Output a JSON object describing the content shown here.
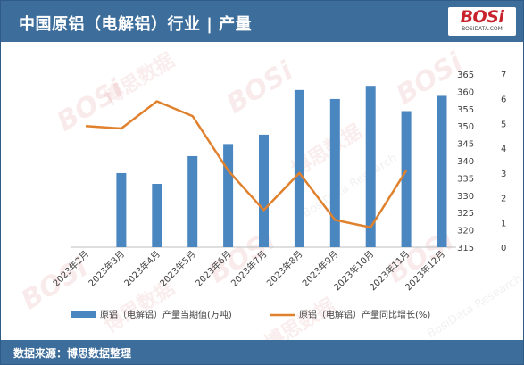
{
  "header": {
    "title": "中国原铝（电解铝）行业 | 产量",
    "logo_text": "BOSi",
    "logo_sub": "BOSIDATA.COM"
  },
  "footer": {
    "source": "数据来源：博思数据整理"
  },
  "watermark": {
    "logo": "BOSi",
    "cn": "博思数据",
    "en": "BosiData Research"
  },
  "colors": {
    "header_bg": "#3d6e9b",
    "bar": "#4a86c0",
    "line": "#e0812e",
    "axis_text": "#404040"
  },
  "chart_data": {
    "type": "bar",
    "categories": [
      "2023年2月",
      "2023年3月",
      "2023年4月",
      "2023年5月",
      "2023年6月",
      "2023年7月",
      "2023年8月",
      "2023年9月",
      "2023年10月",
      "2023年11月",
      "2023年12月"
    ],
    "series": [
      {
        "name": "原铝（电解铝）产量当期值(万吨)",
        "type": "bar",
        "axis": "left",
        "values": [
          null,
          336.4,
          333.3,
          341.3,
          344.8,
          347.5,
          360.4,
          357.8,
          361.6,
          354.3,
          358.7
        ]
      },
      {
        "name": "原铝（电解铝）产量同比增长(%)",
        "type": "line",
        "axis": "right",
        "values": [
          4.9,
          4.8,
          5.9,
          5.3,
          3.1,
          1.5,
          3.0,
          1.1,
          0.8,
          3.1,
          null
        ]
      }
    ],
    "y_left": {
      "min": 315,
      "max": 365,
      "ticks": [
        "315",
        "320",
        "325",
        "330",
        "335",
        "340",
        "345",
        "350",
        "355",
        "360",
        "365"
      ]
    },
    "y_right": {
      "min": 0,
      "max": 7,
      "ticks": [
        "0",
        "1",
        "2",
        "3",
        "4",
        "5",
        "6",
        "7"
      ]
    },
    "grid": false,
    "legend_position": "bottom"
  }
}
